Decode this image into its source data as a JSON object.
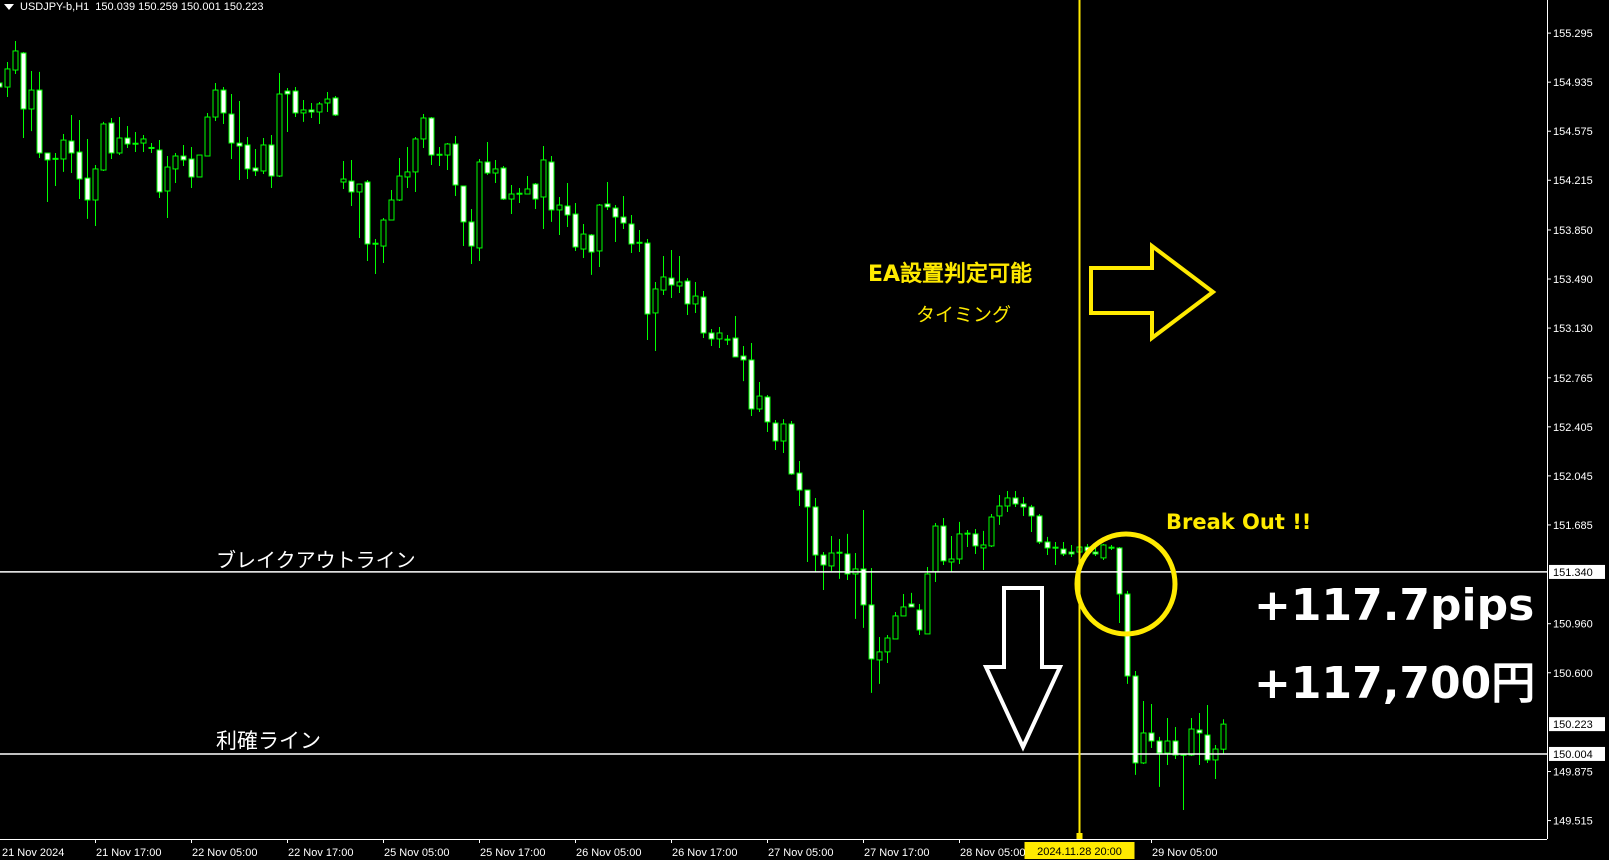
{
  "header": {
    "symbol": "USDJPY-b,H1",
    "ohlc": "150.039 150.259 150.001 150.223",
    "menu_icon": "triangle-down-icon"
  },
  "annotations": {
    "ea_timing_line1": "EA設置判定可能",
    "ea_timing_line2": "タイミング",
    "break_out": "Break Out !!",
    "profit_pips": "+117.7pips",
    "profit_yen": "+117,700円",
    "breakout_line_label": "ブレイクアウトライン",
    "take_profit_line_label": "利確ライン",
    "icons": [
      "arrow-right-icon",
      "arrow-down-icon",
      "circle-highlight"
    ]
  },
  "colors": {
    "background": "#000000",
    "candle_outline": "#00ff00",
    "bear_fill": "#ffffff",
    "bull_fill": "#000000",
    "annotation_yellow": "#ffea00",
    "lines": "#ffffff"
  },
  "chart_data": {
    "type": "candlestick",
    "symbol": "USDJPY-b",
    "timeframe": "H1",
    "ylim": [
      149.38,
      155.538
    ],
    "grid": false,
    "price_ticks": [
      "155.295",
      "154.935",
      "154.575",
      "154.215",
      "153.850",
      "153.490",
      "153.130",
      "152.765",
      "152.405",
      "152.045",
      "151.685",
      "150.960",
      "150.600",
      "149.875",
      "149.515"
    ],
    "horizontal_lines": [
      {
        "price": 151.34,
        "label": "151.340"
      },
      {
        "price": 150.004,
        "label": "150.004"
      }
    ],
    "bid": {
      "price": 150.223,
      "label": "150.223"
    },
    "vertical_line": {
      "bar": 135,
      "label": "2024.11.28 20:00"
    },
    "time_ticks": [
      {
        "bar": 0,
        "label": "21 Nov 2024"
      },
      {
        "bar": 12,
        "label": "21 Nov 17:00"
      },
      {
        "bar": 24,
        "label": "22 Nov 05:00"
      },
      {
        "bar": 36,
        "label": "22 Nov 17:00"
      },
      {
        "bar": 48,
        "label": "25 Nov 05:00"
      },
      {
        "bar": 60,
        "label": "25 Nov 17:00"
      },
      {
        "bar": 72,
        "label": "26 Nov 05:00"
      },
      {
        "bar": 84,
        "label": "26 Nov 17:00"
      },
      {
        "bar": 96,
        "label": "27 Nov 05:00"
      },
      {
        "bar": 108,
        "label": "27 Nov 17:00"
      },
      {
        "bar": 120,
        "label": "28 Nov 05:00"
      },
      {
        "bar": 144,
        "label": "29 Nov 05:00"
      }
    ],
    "candles_ohlc": [
      [
        154.929,
        154.936,
        154.892,
        154.899
      ],
      [
        154.899,
        155.083,
        154.826,
        155.032
      ],
      [
        155.024,
        155.237,
        154.995,
        155.164
      ],
      [
        155.149,
        155.156,
        154.525,
        154.738
      ],
      [
        154.738,
        155.017,
        154.576,
        154.877
      ],
      [
        154.877,
        155.01,
        154.378,
        154.415
      ],
      [
        154.415,
        154.415,
        154.055,
        154.364
      ],
      [
        154.372,
        154.415,
        154.173,
        154.371
      ],
      [
        154.371,
        154.554,
        154.276,
        154.51
      ],
      [
        154.503,
        154.694,
        154.268,
        154.415
      ],
      [
        154.422,
        154.657,
        154.077,
        154.224
      ],
      [
        154.231,
        154.518,
        153.931,
        154.07
      ],
      [
        154.07,
        154.327,
        153.879,
        154.298
      ],
      [
        154.29,
        154.643,
        154.283,
        154.628
      ],
      [
        154.635,
        154.672,
        154.371,
        154.415
      ],
      [
        154.415,
        154.679,
        154.4,
        154.525
      ],
      [
        154.525,
        154.613,
        154.452,
        154.481
      ],
      [
        154.483,
        154.569,
        154.422,
        154.481
      ],
      [
        154.488,
        154.547,
        154.422,
        154.518
      ],
      [
        154.452,
        154.488,
        154.415,
        154.45
      ],
      [
        154.437,
        154.51,
        154.085,
        154.129
      ],
      [
        154.136,
        154.393,
        153.938,
        154.312
      ],
      [
        154.298,
        154.415,
        154.195,
        154.393
      ],
      [
        154.393,
        154.474,
        154.32,
        154.364
      ],
      [
        154.371,
        154.459,
        154.158,
        154.239
      ],
      [
        154.239,
        154.4,
        154.239,
        154.4
      ],
      [
        154.393,
        154.709,
        154.393,
        154.679
      ],
      [
        154.679,
        154.929,
        154.65,
        154.877
      ],
      [
        154.877,
        154.899,
        154.628,
        154.709
      ],
      [
        154.701,
        154.848,
        154.371,
        154.488
      ],
      [
        154.488,
        154.797,
        154.217,
        154.466
      ],
      [
        154.474,
        154.532,
        154.224,
        154.298
      ],
      [
        154.305,
        154.444,
        154.246,
        154.283
      ],
      [
        154.283,
        154.525,
        154.261,
        154.474
      ],
      [
        154.474,
        154.547,
        154.158,
        154.246
      ],
      [
        154.246,
        155.002,
        154.239,
        154.848
      ],
      [
        154.87,
        154.892,
        154.569,
        154.848
      ],
      [
        154.87,
        154.899,
        154.679,
        154.709
      ],
      [
        154.709,
        154.804,
        154.643,
        154.731
      ],
      [
        154.731,
        154.782,
        154.672,
        154.716
      ],
      [
        154.716,
        154.789,
        154.628,
        154.775
      ],
      [
        154.782,
        154.863,
        154.716,
        154.811
      ],
      [
        154.819,
        154.833,
        154.687,
        154.694
      ],
      [
        154.202,
        154.356,
        154.151,
        154.224
      ],
      [
        154.209,
        154.364,
        154.026,
        154.129
      ],
      [
        154.129,
        154.187,
        153.791,
        154.187
      ],
      [
        154.202,
        154.217,
        153.622,
        153.747
      ],
      [
        153.749,
        153.784,
        153.527,
        153.747
      ],
      [
        153.732,
        153.938,
        153.608,
        153.923
      ],
      [
        153.923,
        154.143,
        153.923,
        154.07
      ],
      [
        154.07,
        154.378,
        154.063,
        154.246
      ],
      [
        154.239,
        154.459,
        154.158,
        154.276
      ],
      [
        154.276,
        154.532,
        154.129,
        154.518
      ],
      [
        154.518,
        154.701,
        154.452,
        154.672
      ],
      [
        154.672,
        154.679,
        154.327,
        154.4
      ],
      [
        154.402,
        154.459,
        154.32,
        154.4
      ],
      [
        154.4,
        154.488,
        154.29,
        154.481
      ],
      [
        154.481,
        154.54,
        154.099,
        154.18
      ],
      [
        154.173,
        154.173,
        153.732,
        153.909
      ],
      [
        153.909,
        154.004,
        153.6,
        153.732
      ],
      [
        153.718,
        154.371,
        153.622,
        154.349
      ],
      [
        154.349,
        154.496,
        154.254,
        154.268
      ],
      [
        154.268,
        154.364,
        154.195,
        154.298
      ],
      [
        154.305,
        154.32,
        154.07,
        154.077
      ],
      [
        154.077,
        154.18,
        153.967,
        154.114
      ],
      [
        154.116,
        154.158,
        154.048,
        154.114
      ],
      [
        154.114,
        154.246,
        154.114,
        154.151
      ],
      [
        154.187,
        154.195,
        154.004,
        154.077
      ],
      [
        154.092,
        154.466,
        153.857,
        154.364
      ],
      [
        154.349,
        154.393,
        153.909,
        153.997
      ],
      [
        153.997,
        154.092,
        153.813,
        154.033
      ],
      [
        154.026,
        154.195,
        153.872,
        153.96
      ],
      [
        153.967,
        154.048,
        153.696,
        153.725
      ],
      [
        153.71,
        153.894,
        153.644,
        153.82
      ],
      [
        153.813,
        153.82,
        153.52,
        153.688
      ],
      [
        153.696,
        154.041,
        153.578,
        154.033
      ],
      [
        154.041,
        154.202,
        153.997,
        154.019
      ],
      [
        154.011,
        154.033,
        153.762,
        153.945
      ],
      [
        153.945,
        154.099,
        153.857,
        153.901
      ],
      [
        153.894,
        153.96,
        153.681,
        153.747
      ],
      [
        153.756,
        153.85,
        153.688,
        153.754
      ],
      [
        153.754,
        153.784,
        153.042,
        153.233
      ],
      [
        153.241,
        153.468,
        152.962,
        153.417
      ],
      [
        153.409,
        153.659,
        153.373,
        153.505
      ],
      [
        153.497,
        153.703,
        153.351,
        153.446
      ],
      [
        153.439,
        153.659,
        153.387,
        153.468
      ],
      [
        153.475,
        153.497,
        153.226,
        153.307
      ],
      [
        153.307,
        153.468,
        153.241,
        153.365
      ],
      [
        153.358,
        153.402,
        153.057,
        153.094
      ],
      [
        153.094,
        153.123,
        152.998,
        153.05
      ],
      [
        153.05,
        153.138,
        152.984,
        153.094
      ],
      [
        153.045,
        153.079,
        153.006,
        153.043
      ],
      [
        153.057,
        153.219,
        152.918,
        152.918
      ],
      [
        152.925,
        152.998,
        152.741,
        152.896
      ],
      [
        152.896,
        153.02,
        152.485,
        152.536
      ],
      [
        152.536,
        152.734,
        152.514,
        152.631
      ],
      [
        152.624,
        152.639,
        152.367,
        152.441
      ],
      [
        152.433,
        152.455,
        152.235,
        152.301
      ],
      [
        152.301,
        152.462,
        152.213,
        152.426
      ],
      [
        152.426,
        152.448,
        152.052,
        152.059
      ],
      [
        152.066,
        152.154,
        151.824,
        151.941
      ],
      [
        151.941,
        151.941,
        151.413,
        151.817
      ],
      [
        151.817,
        151.883,
        151.34,
        151.464
      ],
      [
        151.464,
        151.486,
        151.207,
        151.391
      ],
      [
        151.384,
        151.604,
        151.347,
        151.479
      ],
      [
        151.481,
        151.582,
        151.289,
        151.479
      ],
      [
        151.472,
        151.619,
        151.281,
        151.325
      ],
      [
        151.325,
        151.479,
        150.995,
        151.362
      ],
      [
        151.362,
        151.795,
        150.929,
        151.098
      ],
      [
        151.098,
        151.369,
        150.452,
        150.701
      ],
      [
        150.694,
        150.862,
        150.518,
        150.753
      ],
      [
        150.753,
        150.877,
        150.672,
        150.855
      ],
      [
        150.848,
        151.046,
        150.848,
        151.017
      ],
      [
        151.017,
        151.178,
        151.017,
        151.083
      ],
      [
        151.105,
        151.186,
        151.083,
        151.083
      ],
      [
        151.061,
        151.105,
        150.877,
        150.914
      ],
      [
        150.885,
        151.376,
        150.885,
        151.325
      ],
      [
        151.34,
        151.699,
        151.266,
        151.677
      ],
      [
        151.677,
        151.736,
        151.391,
        151.421
      ],
      [
        151.413,
        151.604,
        151.34,
        151.435
      ],
      [
        151.435,
        151.707,
        151.398,
        151.619
      ],
      [
        151.621,
        151.648,
        151.523,
        151.619
      ],
      [
        151.619,
        151.655,
        151.472,
        151.531
      ],
      [
        151.516,
        151.641,
        151.354,
        151.538
      ],
      [
        151.531,
        151.765,
        151.523,
        151.743
      ],
      [
        151.751,
        151.905,
        151.685,
        151.824
      ],
      [
        151.824,
        151.934,
        151.78,
        151.883
      ],
      [
        151.883,
        151.934,
        151.817,
        151.839
      ],
      [
        151.839,
        151.89,
        151.751,
        151.817
      ],
      [
        151.817,
        151.832,
        151.633,
        151.751
      ],
      [
        151.751,
        151.765,
        151.545,
        151.56
      ],
      [
        151.56,
        151.597,
        151.464,
        151.516
      ],
      [
        151.518,
        151.56,
        151.391,
        151.516
      ],
      [
        151.508,
        151.56,
        151.457,
        151.472
      ],
      [
        151.486,
        151.538,
        151.45,
        151.472
      ],
      [
        151.486,
        151.538,
        151.464,
        151.523
      ],
      [
        151.523,
        151.545,
        151.479,
        151.494
      ],
      [
        151.486,
        151.516,
        151.457,
        151.472
      ],
      [
        151.443,
        151.545,
        151.428,
        151.538
      ],
      [
        151.518,
        151.538,
        151.501,
        151.516
      ],
      [
        151.516,
        151.523,
        150.965,
        151.178
      ],
      [
        151.178,
        151.201,
        150.518,
        150.576
      ],
      [
        150.576,
        150.613,
        149.85,
        149.938
      ],
      [
        149.938,
        150.393,
        149.93,
        150.158
      ],
      [
        150.158,
        150.371,
        150.048,
        150.099
      ],
      [
        150.099,
        150.129,
        149.762,
        150.011
      ],
      [
        150.011,
        150.268,
        149.923,
        150.099
      ],
      [
        150.099,
        150.202,
        149.967,
        149.996
      ],
      [
        149.998,
        149.998,
        149.593,
        149.996
      ],
      [
        149.996,
        150.268,
        149.989,
        150.187
      ],
      [
        150.18,
        150.305,
        149.923,
        150.158
      ],
      [
        150.143,
        150.363,
        149.938,
        149.96
      ],
      [
        149.96,
        150.07,
        149.82,
        150.04
      ],
      [
        150.039,
        150.259,
        150.001,
        150.223
      ]
    ]
  }
}
